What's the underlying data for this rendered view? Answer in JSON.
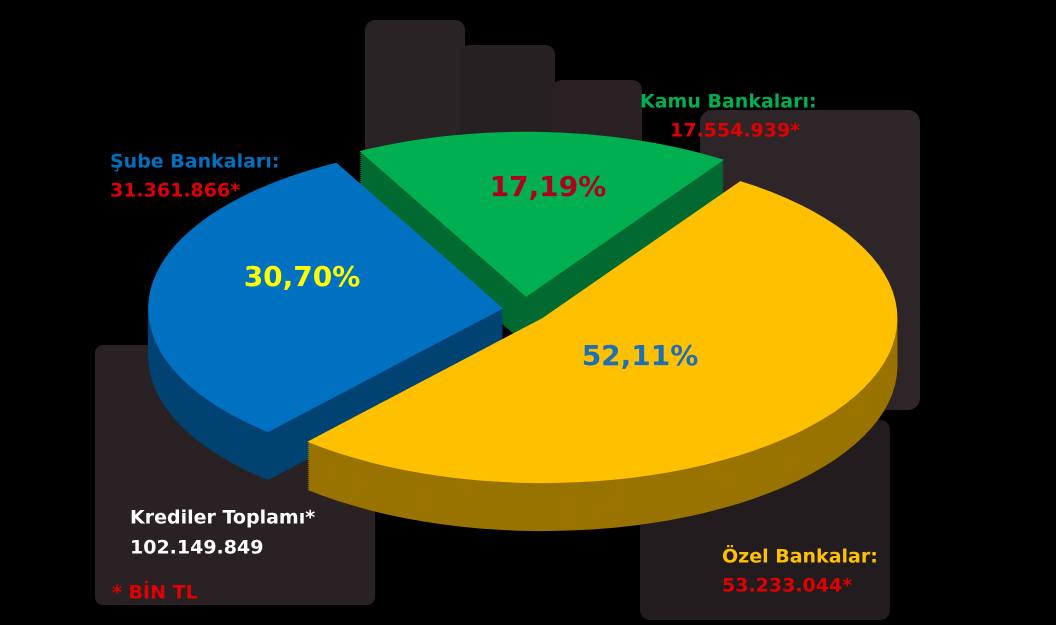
{
  "chart_data": {
    "type": "pie3d",
    "categories": [
      "Şube Bankaları:",
      "Kamu Bankaları:",
      "Özel Bankalar:"
    ],
    "values": [
      30.7,
      17.19,
      52.11
    ],
    "value_labels": [
      "30,70%",
      "17,19%",
      "52,11%"
    ],
    "amount_labels": [
      "31.361.866*",
      "17.554.939*",
      "53.233.044*"
    ],
    "colors": [
      "#0070c0",
      "#00b050",
      "#ffc000"
    ],
    "label_colors": [
      "#ffff00",
      "#b00020",
      "#1f6fb5"
    ],
    "total_label": "Krediler Toplamı*",
    "total": "102.149.849",
    "note": "* BİN TL"
  }
}
